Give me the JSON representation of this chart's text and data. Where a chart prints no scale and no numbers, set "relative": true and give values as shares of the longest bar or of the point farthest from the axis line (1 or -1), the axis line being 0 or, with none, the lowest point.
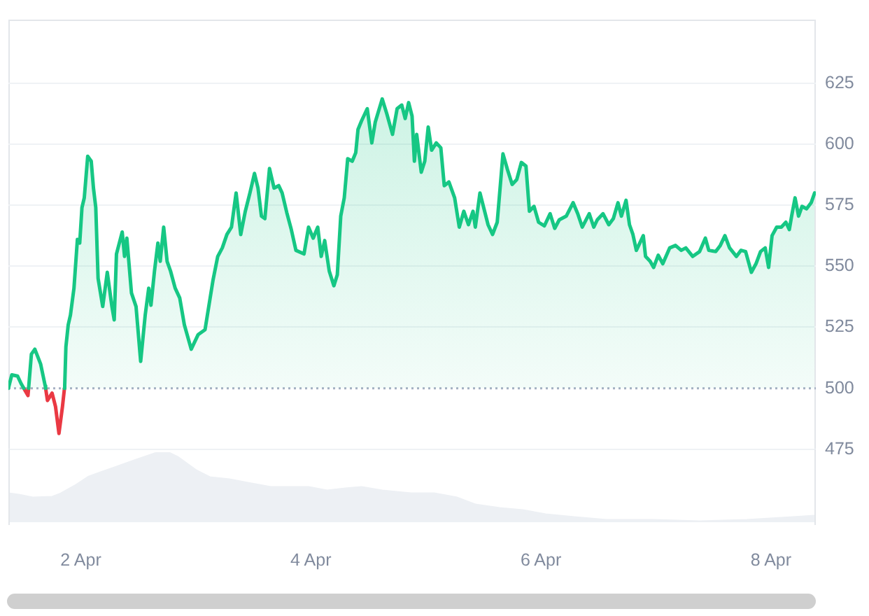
{
  "chart_data": [
    {
      "type": "area",
      "marker": "none",
      "grid": "y",
      "series": [
        {
          "color": "#16c784",
          "x": [
            "--04-01T08:53",
            "--04-01T09:36",
            "--04-01T10:48",
            "--04-01T11:31",
            "--04-01T12:06",
            "--04-01T12:58",
            "--04-01T13:06",
            "--04-01T13:41",
            "--04-01T14:24",
            "--04-01T15:36",
            "--04-01T16:34",
            "--04-01T16:39",
            "--04-01T18:43",
            "--04-01T20:35",
            "--04-01T20:38",
            "--04-01T20:53",
            "--04-01T21:22",
            "--04-01T21:50",
            "--04-01T22:34",
            "--04-01T23:17",
            "--04-01T23:46",
            "--04-02T00:14",
            "--04-02T00:43",
            "--04-02T01:26",
            "--04-02T02:10",
            "--04-02T02:38",
            "--04-02T03:07",
            "--04-02T03:36",
            "--04-02T04:34",
            "--04-02T05:31",
            "--04-02T06:29",
            "--04-02T06:58",
            "--04-02T07:26",
            "--04-02T08:38",
            "--04-02T09:07",
            "--04-02T09:36",
            "--04-02T10:34",
            "--04-02T11:31",
            "--04-02T12:29",
            "--04-02T13:26",
            "--04-02T14:10",
            "--04-02T14:38",
            "--04-02T15:22",
            "--04-02T16:05",
            "--04-02T16:34",
            "--04-02T17:17",
            "--04-02T18:00",
            "--04-02T18:43",
            "--04-02T19:41",
            "--04-02T20:38",
            "--04-02T21:36",
            "--04-02T23:02",
            "--04-03T00:29",
            "--04-03T01:55",
            "--04-03T03:36",
            "--04-03T04:34",
            "--04-03T05:31",
            "--04-03T06:29",
            "--04-03T07:26",
            "--04-03T08:24",
            "--04-03T09:22",
            "--04-03T10:19",
            "--04-03T11:17",
            "--04-03T12:14",
            "--04-03T12:58",
            "--04-03T13:41",
            "--04-03T14:24",
            "--04-03T15:22",
            "--04-03T16:19",
            "--04-03T17:17",
            "--04-03T18:00",
            "--04-03T18:58",
            "--04-03T19:55",
            "--04-03T20:53",
            "--04-03T22:34",
            "--04-03T23:31",
            "--04-04T00:29",
            "--04-04T01:26",
            "--04-04T02:10",
            "--04-04T02:53",
            "--04-04T03:50",
            "--04-04T04:48",
            "--04-04T05:31",
            "--04-04T06:14",
            "--04-04T06:58",
            "--04-04T07:41",
            "--04-04T08:38",
            "--04-04T09:22",
            "--04-04T09:50",
            "--04-04T10:34",
            "--04-04T11:46",
            "--04-04T12:43",
            "--04-04T13:26",
            "--04-04T14:53",
            "--04-04T15:50",
            "--04-04T17:02",
            "--04-04T18:00",
            "--04-04T18:58",
            "--04-04T19:41",
            "--04-04T20:24",
            "--04-04T21:07",
            "--04-04T21:36",
            "--04-04T22:05",
            "--04-04T23:02",
            "--04-04T23:46",
            "--04-05T00:29",
            "--04-05T01:12",
            "--04-05T02:10",
            "--04-05T03:07",
            "--04-05T03:50",
            "--04-05T04:48",
            "--04-05T06:00",
            "--04-05T06:58",
            "--04-05T07:55",
            "--04-05T08:53",
            "--04-05T09:50",
            "--04-05T10:19",
            "--04-05T11:17",
            "--04-05T12:00",
            "--04-05T12:58",
            "--04-05T13:55",
            "--04-05T14:53",
            "--04-05T16:05",
            "--04-05T17:02",
            "--04-05T18:00",
            "--04-05T18:58",
            "--04-05T19:55",
            "--04-05T20:53",
            "--04-05T21:36",
            "--04-05T22:34",
            "--04-05T23:31",
            "--04-06T00:43",
            "--04-06T01:55",
            "--04-06T02:53",
            "--04-06T03:50",
            "--04-06T05:17",
            "--04-06T06:43",
            "--04-06T07:41",
            "--04-06T08:38",
            "--04-06T10:05",
            "--04-06T11:02",
            "--04-06T11:46",
            "--04-06T12:58",
            "--04-06T14:10",
            "--04-06T15:07",
            "--04-06T16:05",
            "--04-06T16:48",
            "--04-06T17:46",
            "--04-06T18:29",
            "--04-06T19:12",
            "--04-06T19:55",
            "--04-06T21:22",
            "--04-06T21:50",
            "--04-06T22:48",
            "--04-06T23:31",
            "--04-07T00:29",
            "--04-07T01:26",
            "--04-07T02:53",
            "--04-07T04:05",
            "--04-07T05:17",
            "--04-07T06:14",
            "--04-07T07:41",
            "--04-07T09:07",
            "--04-07T10:19",
            "--04-07T11:02",
            "--04-07T12:29",
            "--04-07T13:26",
            "--04-07T14:24",
            "--04-07T15:22",
            "--04-07T16:48",
            "--04-07T17:46",
            "--04-07T18:43",
            "--04-07T19:55",
            "--04-07T20:53",
            "--04-07T21:50",
            "--04-07T22:48",
            "--04-07T23:31",
            "--04-08T00:14",
            "--04-08T01:12",
            "--04-08T02:10",
            "--04-08T03:07",
            "--04-08T03:50",
            "--04-08T04:19",
            "--04-08T05:02",
            "--04-08T05:46",
            "--04-08T06:29",
            "--04-08T07:26",
            "--04-08T08:24",
            "--04-08T09:07"
          ],
          "values": [
            500,
            505.5,
            505,
            502,
            500,
            null,
            500,
            514,
            516,
            510,
            501,
            500,
            null,
            500,
            501,
            517,
            526,
            530,
            541,
            561,
            559.5,
            574,
            578,
            595,
            593,
            582,
            574,
            545,
            533.5,
            547.5,
            533.5,
            528,
            555,
            564,
            554,
            561.5,
            539,
            533.5,
            511,
            530,
            541,
            534,
            548,
            559.5,
            552,
            566,
            552,
            548,
            541,
            537,
            526,
            516,
            522,
            524,
            544.5,
            554,
            557.5,
            563,
            566,
            580,
            563,
            572.5,
            580,
            588,
            582,
            570.5,
            569.5,
            590,
            582,
            583,
            580,
            572,
            565,
            556.5,
            555,
            566,
            561.5,
            566,
            554,
            560.5,
            548,
            542,
            546.5,
            570.5,
            578,
            594,
            593,
            596.5,
            606,
            609.5,
            614.5,
            600.5,
            609,
            618.5,
            612.5,
            604,
            614.5,
            616,
            610.5,
            617,
            611.5,
            593,
            604,
            588.5,
            593,
            607,
            597.5,
            600.5,
            598.5,
            583,
            584.5,
            578,
            566,
            572.5,
            567,
            572.5,
            566,
            580,
            574.5,
            567,
            563,
            568,
            596,
            589.5,
            583.5,
            585.5,
            592.5,
            591,
            572.5,
            574.5,
            568,
            566.5,
            571.5,
            565.5,
            569,
            570.5,
            576,
            571.5,
            566,
            571.5,
            566,
            569,
            571.5,
            567,
            569.5,
            576,
            570.5,
            577,
            567,
            563,
            556.5,
            562.5,
            554,
            552,
            549.5,
            554.5,
            551,
            557.5,
            558.5,
            556.5,
            557.5,
            554,
            556,
            561.5,
            556.5,
            556,
            558.5,
            562.5,
            557.5,
            554,
            556.5,
            556,
            547.5,
            551,
            556,
            557.5,
            549.5,
            562.5,
            566,
            566,
            568,
            565,
            570.5,
            578,
            570.5,
            574.5,
            573.5,
            576,
            580
          ]
        },
        {
          "type": "line",
          "color": "#ea3943",
          "x": [
            "--04-01T12:06",
            "--04-01T12:58",
            "--04-01T13:06",
            "--04-01T15:00",
            "--04-01T16:39",
            "--04-01T17:02",
            "--04-01T18:00",
            "--04-01T18:43",
            "--04-01T19:26",
            "--04-01T20:10",
            "--04-01T20:35"
          ],
          "values": [
            500,
            497,
            500,
            null,
            500,
            495,
            498,
            492.5,
            481.5,
            492.5,
            500
          ]
        }
      ],
      "xlim": [
        "--04-01T08:53",
        "--04-08T09:22"
      ],
      "ylim": [
        444,
        651
      ],
      "xticks": [
        {
          "value": "--04-02",
          "label": "2 Apr"
        },
        {
          "value": "--04-04",
          "label": "4 Apr"
        },
        {
          "value": "--04-06",
          "label": "6 Apr"
        },
        {
          "value": "--04-08",
          "label": "8 Apr"
        }
      ],
      "yticks": [
        475,
        500,
        525,
        550,
        575,
        600,
        625
      ],
      "ref_lines": [
        {
          "axis": "y",
          "value": 500,
          "color": "#a6b0c3",
          "line_style": "dotted"
        }
      ]
    },
    {
      "type": "area",
      "relative": true,
      "color": "#edf0f4",
      "tick_labels": false,
      "xlim": [
        "--04-01T08:53",
        "--04-08T09:22"
      ],
      "x": [
        "--04-01T08:53",
        "--04-01T11:02",
        "--04-01T13:55",
        "--04-01T18:00",
        "--04-01T19:55",
        "--04-01T22:48",
        "--04-02T01:41",
        "--04-02T04:05",
        "--04-02T07:26",
        "--04-02T11:31",
        "--04-02T15:22",
        "--04-02T17:46",
        "--04-02T20:10",
        "--04-03T00:00",
        "--04-03T02:53",
        "--04-03T06:58",
        "--04-03T10:48",
        "--04-03T15:36",
        "--04-03T19:26",
        "--04-03T23:31",
        "--04-04T03:22",
        "--04-04T07:12",
        "--04-04T10:34",
        "--04-04T14:53",
        "--04-04T20:53",
        "--04-05T01:41",
        "--04-05T06:29",
        "--04-05T10:19",
        "--04-05T15:22",
        "--04-05T20:10",
        "--04-06T00:58",
        "--04-06T06:58",
        "--04-06T13:41",
        "--04-06T23:31",
        "--04-07T09:07",
        "--04-07T18:58",
        "--04-08T04:34",
        "--04-08T09:07"
      ],
      "values": [
        0.4,
        0.38,
        0.34,
        0.35,
        0.4,
        0.51,
        0.64,
        0.7,
        0.78,
        0.88,
        0.97,
        1,
        0.92,
        0.73,
        0.63,
        0.6,
        0.55,
        0.49,
        0.49,
        0.49,
        0.44,
        0.47,
        0.49,
        0.44,
        0.4,
        0.4,
        0.34,
        0.24,
        0.19,
        0.16,
        0.1,
        0.06,
        0.02,
        0.02,
        0,
        0.02,
        0.06,
        0.08
      ]
    }
  ]
}
